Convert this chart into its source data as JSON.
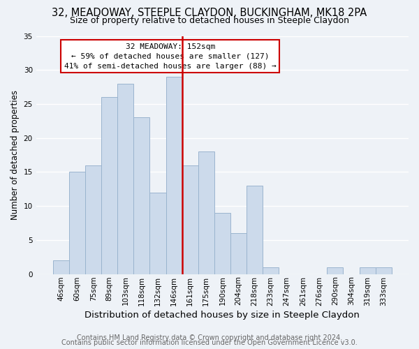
{
  "title1": "32, MEADOWAY, STEEPLE CLAYDON, BUCKINGHAM, MK18 2PA",
  "title2": "Size of property relative to detached houses in Steeple Claydon",
  "xlabel": "Distribution of detached houses by size in Steeple Claydon",
  "ylabel": "Number of detached properties",
  "bar_labels": [
    "46sqm",
    "60sqm",
    "75sqm",
    "89sqm",
    "103sqm",
    "118sqm",
    "132sqm",
    "146sqm",
    "161sqm",
    "175sqm",
    "190sqm",
    "204sqm",
    "218sqm",
    "233sqm",
    "247sqm",
    "261sqm",
    "276sqm",
    "290sqm",
    "304sqm",
    "319sqm",
    "333sqm"
  ],
  "bar_heights": [
    2,
    15,
    16,
    26,
    28,
    23,
    12,
    29,
    16,
    18,
    9,
    6,
    13,
    1,
    0,
    0,
    0,
    1,
    0,
    1,
    1
  ],
  "bar_color": "#ccdaeb",
  "bar_edgecolor": "#9ab4ce",
  "highlight_bar_index": 7,
  "vline_color": "#cc0000",
  "ylim": [
    0,
    35
  ],
  "yticks": [
    0,
    5,
    10,
    15,
    20,
    25,
    30,
    35
  ],
  "annotation_title": "32 MEADOWAY: 152sqm",
  "annotation_line1": "← 59% of detached houses are smaller (127)",
  "annotation_line2": "41% of semi-detached houses are larger (88) →",
  "annotation_box_color": "#ffffff",
  "annotation_box_edgecolor": "#cc0000",
  "footer1": "Contains HM Land Registry data © Crown copyright and database right 2024.",
  "footer2": "Contains public sector information licensed under the Open Government Licence v3.0.",
  "background_color": "#eef2f7",
  "grid_color": "#ffffff",
  "title1_fontsize": 10.5,
  "title2_fontsize": 9,
  "xlabel_fontsize": 9.5,
  "ylabel_fontsize": 8.5,
  "tick_fontsize": 7.5,
  "footer_fontsize": 7.0
}
